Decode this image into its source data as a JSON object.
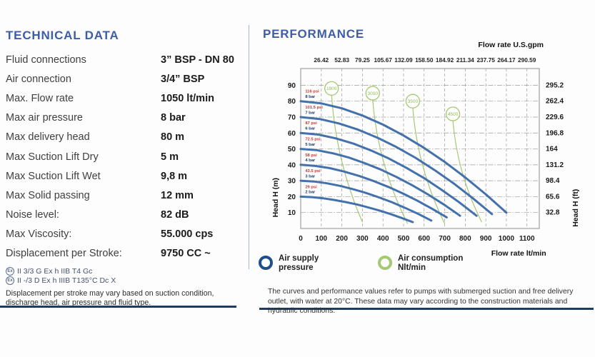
{
  "left": {
    "title": "TECHNICAL DATA",
    "specs": [
      {
        "label": "Fluid connections",
        "value": "3” BSP - DN 80"
      },
      {
        "label": "Air connection",
        "value": "3/4” BSP"
      },
      {
        "label": "Max. Flow rate",
        "value": "1050 lt/min"
      },
      {
        "label": "Max air pressure",
        "value": "8 bar"
      },
      {
        "label": "Max delivery head",
        "value": "80 m"
      },
      {
        "label": "Max Suction Lift Dry",
        "value": "5 m"
      },
      {
        "label": "Max Suction Lift Wet",
        "value": "9,8 m"
      },
      {
        "label": "Max Solid passing",
        "value": "12 mm"
      },
      {
        "label": "Noise level:",
        "value": "82 dB"
      },
      {
        "label": "Max Viscosity:",
        "value": "55.000 cps"
      },
      {
        "label": "Displacement per Stroke:",
        "value": "9750 CC ~"
      }
    ],
    "atex_icon": "Ex",
    "atex_lines": [
      "II 3/3 G Ex h IIB T4 Gc",
      "II -/3 D Ex h IIIB T135°C Dc X"
    ],
    "note": "Displacement per stroke may vary based on suction condition, discharge head, air pressure and fluid type."
  },
  "right": {
    "title": "PERFORMANCE",
    "legend": [
      {
        "label": "Air supply pressure",
        "color": "#1d4f8c"
      },
      {
        "label": "Air consumption Nlt/min",
        "color": "#a4c970"
      }
    ],
    "footnote": "The curves and performance values refer to pumps with submerged suction and free delivery outlet, with water at 20°C. These data may vary according to the construction materials and hydraulic conditions."
  },
  "chart_data": {
    "type": "line",
    "title": "",
    "xlim": [
      0,
      1160
    ],
    "ylim": [
      0,
      100.5
    ],
    "grid": true,
    "x_top_axis": {
      "label": "Flow rate U.S.gpm",
      "ticks": [
        "26.42",
        "52.83",
        "79.25",
        "105.67",
        "132.09",
        "158.50",
        "184.92",
        "211.34",
        "237.75",
        "264.17",
        "290.59"
      ]
    },
    "x_bottom_axis": {
      "label": "Flow rate  lt/min",
      "ticks": [
        0,
        100,
        200,
        300,
        400,
        500,
        600,
        700,
        800,
        900,
        1000,
        1100
      ]
    },
    "y_left_axis": {
      "label": "Head H (m)",
      "ticks": [
        10,
        20,
        30,
        40,
        50,
        60,
        70,
        80,
        90
      ]
    },
    "y_right_axis": {
      "label": "Head H (ft)",
      "ticks": [
        "32.8",
        "65.6",
        "98.4",
        "131.2",
        "164",
        "196.8",
        "229.6",
        "262.4",
        "295.2"
      ]
    },
    "colors": {
      "pressure": "#4271ac",
      "consumption": "#a4c970",
      "grid": "#9a9a9a",
      "frame": "#8d8d8d",
      "psi_text": "#c4372f",
      "bar_text": "#1d3a66"
    },
    "series": [
      {
        "bar": "8 bar",
        "psi": "116 psi",
        "points": [
          [
            0,
            80
          ],
          [
            100,
            78.6
          ],
          [
            200,
            75.5
          ],
          [
            300,
            71
          ],
          [
            400,
            65.3
          ],
          [
            500,
            58.4
          ],
          [
            600,
            50.6
          ],
          [
            700,
            41.8
          ],
          [
            800,
            32.1
          ],
          [
            900,
            21.5
          ],
          [
            1000,
            10
          ]
        ]
      },
      {
        "bar": "7 bar",
        "psi": "101.5 psi",
        "points": [
          [
            0,
            70
          ],
          [
            93,
            68.8
          ],
          [
            186,
            66
          ],
          [
            279,
            62.1
          ],
          [
            372,
            57.1
          ],
          [
            465,
            51.2
          ],
          [
            558,
            44.4
          ],
          [
            651,
            36.7
          ],
          [
            744,
            28.3
          ],
          [
            837,
            19
          ],
          [
            930,
            9
          ]
        ]
      },
      {
        "bar": "6 bar",
        "psi": "87 psi",
        "points": [
          [
            0,
            60
          ],
          [
            86,
            59
          ],
          [
            171,
            56.6
          ],
          [
            257,
            53.3
          ],
          [
            342,
            49
          ],
          [
            428,
            44
          ],
          [
            513,
            38.2
          ],
          [
            599,
            31.7
          ],
          [
            684,
            24.4
          ],
          [
            770,
            16.5
          ],
          [
            855,
            8
          ]
        ]
      },
      {
        "bar": "5 bar",
        "psi": "72.5 psi",
        "points": [
          [
            0,
            50
          ],
          [
            78,
            49.2
          ],
          [
            155,
            47.3
          ],
          [
            233,
            44.6
          ],
          [
            310,
            41.1
          ],
          [
            388,
            37.1
          ],
          [
            465,
            32.4
          ],
          [
            543,
            27.1
          ],
          [
            620,
            21.3
          ],
          [
            698,
            14.9
          ],
          [
            775,
            8
          ]
        ]
      },
      {
        "bar": "4 bar",
        "psi": "58 psi",
        "points": [
          [
            0,
            40
          ],
          [
            71,
            39.3
          ],
          [
            142,
            37.9
          ],
          [
            213,
            35.7
          ],
          [
            284,
            33
          ],
          [
            355,
            29.8
          ],
          [
            426,
            26.1
          ],
          [
            497,
            22
          ],
          [
            568,
            17.4
          ],
          [
            639,
            12.4
          ],
          [
            710,
            7
          ]
        ]
      },
      {
        "bar": "3 bar",
        "psi": "43.5 psi",
        "points": [
          [
            0,
            30
          ],
          [
            64,
            29.5
          ],
          [
            127,
            28.4
          ],
          [
            191,
            26.8
          ],
          [
            254,
            24.7
          ],
          [
            318,
            22.3
          ],
          [
            381,
            19.5
          ],
          [
            445,
            16.4
          ],
          [
            508,
            12.9
          ],
          [
            572,
            9.1
          ],
          [
            635,
            5
          ]
        ]
      },
      {
        "bar": "2 bar",
        "psi": "29 psi",
        "points": [
          [
            0,
            20
          ],
          [
            55,
            19.7
          ],
          [
            109,
            19
          ],
          [
            164,
            17.9
          ],
          [
            218,
            16.6
          ],
          [
            273,
            15.1
          ],
          [
            327,
            13.3
          ],
          [
            382,
            11.3
          ],
          [
            436,
            9.1
          ],
          [
            491,
            6.6
          ],
          [
            545,
            4
          ]
        ]
      }
    ],
    "air_consumption": [
      {
        "label": "1900",
        "circle": [
          150,
          88
        ],
        "end": [
          300,
          4
        ]
      },
      {
        "label": "3000",
        "circle": [
          350,
          85
        ],
        "end": [
          520,
          3
        ]
      },
      {
        "label": "3500",
        "circle": [
          545,
          80
        ],
        "end": [
          700,
          3
        ]
      },
      {
        "label": "4500",
        "circle": [
          740,
          72
        ],
        "end": [
          880,
          4
        ]
      }
    ]
  }
}
